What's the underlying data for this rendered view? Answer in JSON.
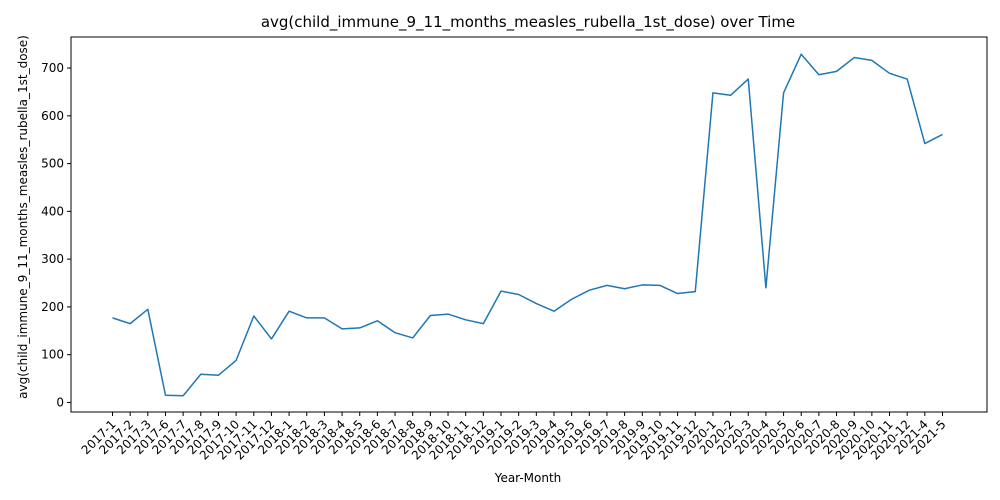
{
  "chart_data": {
    "type": "line",
    "title": "avg(child_immune_9_11_months_measles_rubella_1st_dose) over Time",
    "xlabel": "Year-Month",
    "ylabel": "avg(child_immune_9_11_months_measles_rubella_1st_dose)",
    "categories": [
      "2017-1",
      "2017-2",
      "2017-3",
      "2017-6",
      "2017-7",
      "2017-8",
      "2017-9",
      "2017-10",
      "2017-11",
      "2017-12",
      "2018-1",
      "2018-2",
      "2018-3",
      "2018-4",
      "2018-5",
      "2018-6",
      "2018-7",
      "2018-8",
      "2018-9",
      "2018-10",
      "2018-11",
      "2018-12",
      "2019-1",
      "2019-2",
      "2019-3",
      "2019-4",
      "2019-5",
      "2019-6",
      "2019-7",
      "2019-8",
      "2019-9",
      "2019-10",
      "2019-11",
      "2019-12",
      "2020-1",
      "2020-2",
      "2020-3",
      "2020-4",
      "2020-5",
      "2020-6",
      "2020-7",
      "2020-8",
      "2020-9",
      "2020-10",
      "2020-11",
      "2020-12",
      "2021-4",
      "2021-5"
    ],
    "series": [
      {
        "values": [
          177,
          165,
          195,
          15,
          14,
          59,
          57,
          88,
          181,
          133,
          191,
          177,
          177,
          154,
          156,
          171,
          146,
          135,
          182,
          185,
          173,
          165,
          233,
          226,
          207,
          191,
          216,
          235,
          245,
          238,
          246,
          245,
          228,
          232,
          648,
          643,
          677,
          240,
          648,
          729,
          686,
          693,
          722,
          716,
          689,
          677,
          542,
          561
        ],
        "color": "#1f77b4"
      }
    ],
    "yticks": [
      0,
      100,
      200,
      300,
      400,
      500,
      600,
      700
    ],
    "ylim": [
      -20,
      765
    ],
    "grid": false,
    "legend": "none"
  }
}
